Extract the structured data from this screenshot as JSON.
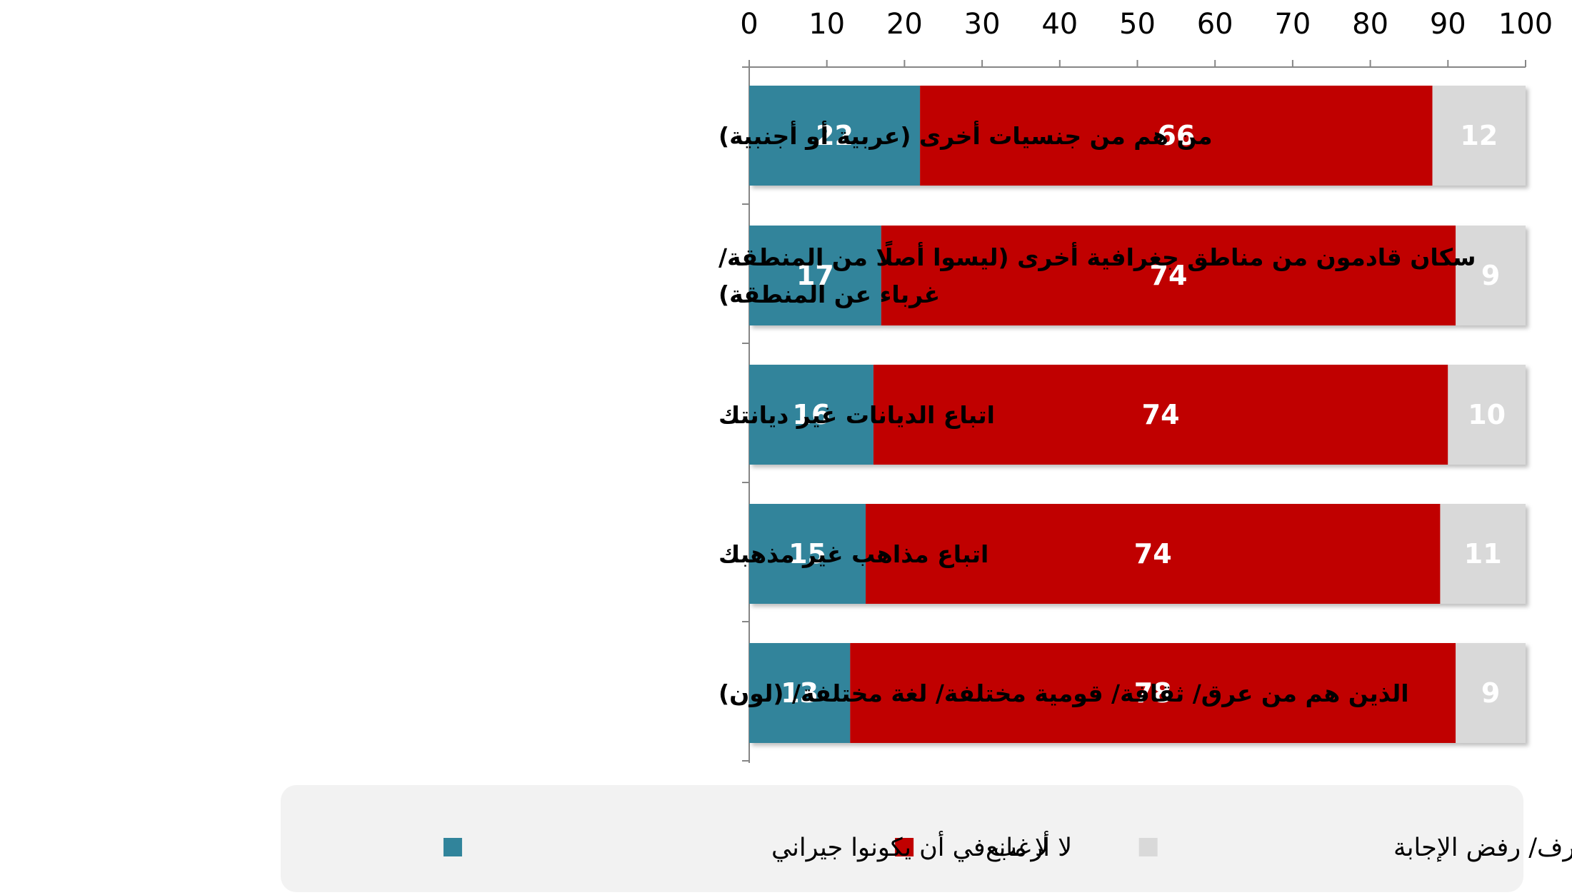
{
  "chart_data": {
    "type": "bar",
    "orientation": "horizontal",
    "stacked": true,
    "categories": [
      "من هم من جنسيات أخرى (عربية أو أجنبية)",
      "سكان قادمون من مناطق جغرافية أخرى (ليسوا أصلًا  من المنطقة/ غرباء عن المنطقة)",
      "اتباع الديانات غير ديانتك",
      "اتباع مذاهب غير مذهبك",
      "الذين هم من عرق/ ثقافة/ قومية مختلفة/ لغة مختلفة/ (لون)"
    ],
    "category_lines": [
      [
        "من هم من جنسيات أخرى (عربية أو أجنبية)"
      ],
      [
        "سكان قادمون من مناطق جغرافية أخرى (ليسوا أصلًا  من المنطقة/",
        "غرباء عن المنطقة)"
      ],
      [
        "اتباع الديانات غير ديانتك"
      ],
      [
        "اتباع مذاهب غير مذهبك"
      ],
      [
        "الذين هم من عرق/ ثقافة/ قومية مختلفة/ لغة مختلفة/ (لون)"
      ]
    ],
    "series": [
      {
        "name": "لا أرغب في أن يكونوا جيراني",
        "values": [
          22,
          17,
          16,
          15,
          13
        ],
        "color": "#31849B",
        "label_color": "#FFFFFF"
      },
      {
        "name": "لا مانع",
        "values": [
          66,
          74,
          74,
          74,
          78
        ],
        "color": "#C00000",
        "label_color": "#FFFFFF"
      },
      {
        "name": "لا أعرف/ رفض الإجابة",
        "values": [
          12,
          9,
          10,
          11,
          9
        ],
        "color": "#D9D9D9",
        "label_color": "#FFFFFF"
      }
    ],
    "xlim": [
      0,
      100
    ],
    "x_ticks": [
      0,
      10,
      20,
      30,
      40,
      50,
      60,
      70,
      80,
      90,
      100
    ],
    "x_axis_position": "top",
    "grid": false,
    "legend_position": "bottom",
    "legend_order": [
      "لا أعرف/ رفض الإجابة",
      "لا مانع",
      "لا أرغب في أن يكونوا جيراني"
    ],
    "title": "",
    "xlabel": "",
    "ylabel": ""
  }
}
